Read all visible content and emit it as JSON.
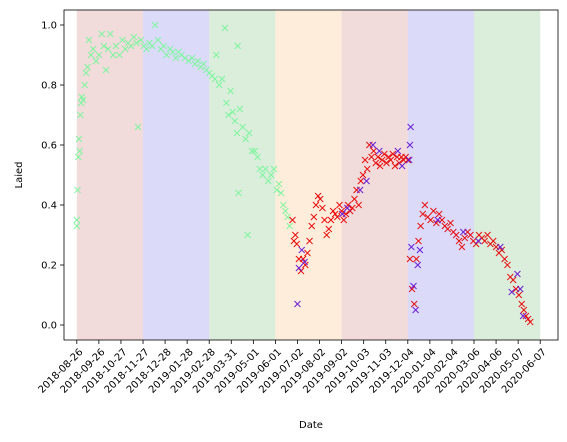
{
  "chart_data": {
    "type": "scatter",
    "title": "",
    "xlabel": "Date",
    "ylabel": "Laied",
    "xlim": [
      "2018-08-08",
      "2020-07-02"
    ],
    "ylim": [
      -0.05,
      1.05
    ],
    "grid": false,
    "legend": "none",
    "marker": "x",
    "x_ticks": [
      "2018-08-26",
      "2018-09-26",
      "2018-10-27",
      "2018-11-27",
      "2018-12-28",
      "2019-01-28",
      "2019-02-28",
      "2019-03-31",
      "2019-05-01",
      "2019-06-01",
      "2019-07-02",
      "2019-08-02",
      "2019-09-02",
      "2019-10-03",
      "2019-11-03",
      "2019-12-04",
      "2020-01-04",
      "2020-02-04",
      "2020-03-06",
      "2020-04-06",
      "2020-05-07",
      "2020-06-07"
    ],
    "y_ticks": [
      0.0,
      0.2,
      0.4,
      0.6,
      0.8,
      1.0
    ],
    "background_bands": [
      {
        "start": "2018-08-26",
        "end": "2018-11-27",
        "color": "#d9a0a0"
      },
      {
        "start": "2018-11-27",
        "end": "2019-02-28",
        "color": "#a0a0f0"
      },
      {
        "start": "2019-02-28",
        "end": "2019-06-01",
        "color": "#a0d0a0"
      },
      {
        "start": "2019-06-01",
        "end": "2019-09-02",
        "color": "#ffd0a0"
      },
      {
        "start": "2019-09-02",
        "end": "2019-12-04",
        "color": "#d9a0a0"
      },
      {
        "start": "2019-12-04",
        "end": "2020-03-06",
        "color": "#a0a0f0"
      },
      {
        "start": "2020-03-06",
        "end": "2020-06-07",
        "color": "#a0d0a0"
      }
    ],
    "series": [
      {
        "color": "#7ff59f",
        "points": [
          [
            "2018-08-26",
            0.33
          ],
          [
            "2018-08-26",
            0.35
          ],
          [
            "2018-08-27",
            0.45
          ],
          [
            "2018-08-28",
            0.56
          ],
          [
            "2018-08-29",
            0.62
          ],
          [
            "2018-08-30",
            0.58
          ],
          [
            "2018-08-31",
            0.7
          ],
          [
            "2018-09-01",
            0.74
          ],
          [
            "2018-09-02",
            0.76
          ],
          [
            "2018-09-04",
            0.75
          ],
          [
            "2018-09-06",
            0.8
          ],
          [
            "2018-09-08",
            0.84
          ],
          [
            "2018-09-10",
            0.86
          ],
          [
            "2018-09-12",
            0.95
          ],
          [
            "2018-09-15",
            0.9
          ],
          [
            "2018-09-18",
            0.92
          ],
          [
            "2018-09-22",
            0.88
          ],
          [
            "2018-09-26",
            0.9
          ],
          [
            "2018-09-30",
            0.97
          ],
          [
            "2018-10-03",
            0.93
          ],
          [
            "2018-10-06",
            0.85
          ],
          [
            "2018-10-09",
            0.92
          ],
          [
            "2018-10-12",
            0.97
          ],
          [
            "2018-10-16",
            0.9
          ],
          [
            "2018-10-20",
            0.93
          ],
          [
            "2018-10-25",
            0.9
          ],
          [
            "2018-10-29",
            0.95
          ],
          [
            "2018-11-02",
            0.92
          ],
          [
            "2018-11-06",
            0.94
          ],
          [
            "2018-11-10",
            0.93
          ],
          [
            "2018-11-14",
            0.96
          ],
          [
            "2018-11-18",
            0.94
          ],
          [
            "2018-11-20",
            0.66
          ],
          [
            "2018-11-24",
            0.95
          ],
          [
            "2018-11-28",
            0.93
          ],
          [
            "2018-12-02",
            0.92
          ],
          [
            "2018-12-06",
            0.94
          ],
          [
            "2018-12-10",
            0.93
          ],
          [
            "2018-12-14",
            1.0
          ],
          [
            "2018-12-18",
            0.95
          ],
          [
            "2018-12-22",
            0.92
          ],
          [
            "2018-12-26",
            0.93
          ],
          [
            "2018-12-30",
            0.9
          ],
          [
            "2019-01-04",
            0.92
          ],
          [
            "2019-01-08",
            0.91
          ],
          [
            "2019-01-12",
            0.89
          ],
          [
            "2019-01-16",
            0.91
          ],
          [
            "2019-01-20",
            0.9
          ],
          [
            "2019-01-25",
            0.89
          ],
          [
            "2019-01-30",
            0.88
          ],
          [
            "2019-02-04",
            0.89
          ],
          [
            "2019-02-08",
            0.87
          ],
          [
            "2019-02-12",
            0.88
          ],
          [
            "2019-02-16",
            0.86
          ],
          [
            "2019-02-20",
            0.87
          ],
          [
            "2019-02-24",
            0.85
          ],
          [
            "2019-02-28",
            0.84
          ],
          [
            "2019-03-04",
            0.83
          ],
          [
            "2019-03-08",
            0.82
          ],
          [
            "2019-03-10",
            0.9
          ],
          [
            "2019-03-14",
            0.8
          ],
          [
            "2019-03-18",
            0.82
          ],
          [
            "2019-03-22",
            0.99
          ],
          [
            "2019-03-24",
            0.74
          ],
          [
            "2019-03-27",
            0.7
          ],
          [
            "2019-03-30",
            0.78
          ],
          [
            "2019-04-02",
            0.71
          ],
          [
            "2019-04-05",
            0.68
          ],
          [
            "2019-04-08",
            0.64
          ],
          [
            "2019-04-09",
            0.93
          ],
          [
            "2019-04-10",
            0.44
          ],
          [
            "2019-04-12",
            0.72
          ],
          [
            "2019-04-16",
            0.66
          ],
          [
            "2019-04-20",
            0.62
          ],
          [
            "2019-04-23",
            0.3
          ],
          [
            "2019-04-25",
            0.64
          ],
          [
            "2019-04-29",
            0.58
          ],
          [
            "2019-05-03",
            0.58
          ],
          [
            "2019-05-07",
            0.56
          ],
          [
            "2019-05-10",
            0.52
          ],
          [
            "2019-05-14",
            0.5
          ],
          [
            "2019-05-18",
            0.52
          ],
          [
            "2019-05-22",
            0.48
          ],
          [
            "2019-05-26",
            0.5
          ],
          [
            "2019-05-30",
            0.52
          ],
          [
            "2019-06-03",
            0.45
          ],
          [
            "2019-06-06",
            0.47
          ],
          [
            "2019-06-09",
            0.44
          ],
          [
            "2019-06-12",
            0.4
          ],
          [
            "2019-06-15",
            0.38
          ],
          [
            "2019-06-18",
            0.36
          ],
          [
            "2019-06-21",
            0.33
          ]
        ]
      },
      {
        "color": "#e81010",
        "points": [
          [
            "2019-06-25",
            0.35
          ],
          [
            "2019-06-27",
            0.28
          ],
          [
            "2019-06-29",
            0.3
          ],
          [
            "2019-07-01",
            0.27
          ],
          [
            "2019-07-04",
            0.22
          ],
          [
            "2019-07-07",
            0.18
          ],
          [
            "2019-07-10",
            0.22
          ],
          [
            "2019-07-13",
            0.2
          ],
          [
            "2019-07-16",
            0.24
          ],
          [
            "2019-07-19",
            0.28
          ],
          [
            "2019-07-22",
            0.33
          ],
          [
            "2019-07-25",
            0.36
          ],
          [
            "2019-07-28",
            0.4
          ],
          [
            "2019-07-31",
            0.43
          ],
          [
            "2019-08-03",
            0.42
          ],
          [
            "2019-08-06",
            0.39
          ],
          [
            "2019-08-09",
            0.35
          ],
          [
            "2019-08-12",
            0.3
          ],
          [
            "2019-08-15",
            0.32
          ],
          [
            "2019-08-18",
            0.35
          ],
          [
            "2019-08-21",
            0.38
          ],
          [
            "2019-08-24",
            0.37
          ],
          [
            "2019-08-27",
            0.36
          ],
          [
            "2019-08-30",
            0.4
          ],
          [
            "2019-09-02",
            0.38
          ],
          [
            "2019-09-05",
            0.35
          ],
          [
            "2019-09-08",
            0.37
          ],
          [
            "2019-09-11",
            0.4
          ],
          [
            "2019-09-14",
            0.38
          ],
          [
            "2019-09-17",
            0.39
          ],
          [
            "2019-09-20",
            0.42
          ],
          [
            "2019-09-23",
            0.45
          ],
          [
            "2019-09-26",
            0.4
          ],
          [
            "2019-09-29",
            0.48
          ],
          [
            "2019-10-02",
            0.5
          ],
          [
            "2019-10-05",
            0.55
          ],
          [
            "2019-10-08",
            0.52
          ],
          [
            "2019-10-11",
            0.6
          ],
          [
            "2019-10-14",
            0.56
          ],
          [
            "2019-10-17",
            0.58
          ],
          [
            "2019-10-20",
            0.54
          ],
          [
            "2019-10-23",
            0.56
          ],
          [
            "2019-10-26",
            0.53
          ],
          [
            "2019-10-29",
            0.55
          ],
          [
            "2019-11-01",
            0.57
          ],
          [
            "2019-11-04",
            0.54
          ],
          [
            "2019-11-07",
            0.56
          ],
          [
            "2019-11-10",
            0.55
          ],
          [
            "2019-11-13",
            0.57
          ],
          [
            "2019-11-16",
            0.53
          ],
          [
            "2019-11-19",
            0.56
          ],
          [
            "2019-11-22",
            0.54
          ],
          [
            "2019-11-25",
            0.56
          ],
          [
            "2019-11-28",
            0.55
          ],
          [
            "2019-12-01",
            0.56
          ],
          [
            "2019-12-04",
            0.55
          ],
          [
            "2019-12-07",
            0.22
          ],
          [
            "2019-12-10",
            0.12
          ],
          [
            "2019-12-13",
            0.07
          ],
          [
            "2019-12-16",
            0.22
          ],
          [
            "2019-12-19",
            0.28
          ],
          [
            "2019-12-22",
            0.33
          ],
          [
            "2019-12-25",
            0.37
          ],
          [
            "2019-12-28",
            0.4
          ],
          [
            "2020-01-01",
            0.36
          ],
          [
            "2020-01-05",
            0.35
          ],
          [
            "2020-01-09",
            0.38
          ],
          [
            "2020-01-13",
            0.34
          ],
          [
            "2020-01-17",
            0.37
          ],
          [
            "2020-01-21",
            0.35
          ],
          [
            "2020-01-25",
            0.33
          ],
          [
            "2020-01-29",
            0.32
          ],
          [
            "2020-02-02",
            0.34
          ],
          [
            "2020-02-06",
            0.31
          ],
          [
            "2020-02-10",
            0.3
          ],
          [
            "2020-02-14",
            0.28
          ],
          [
            "2020-02-18",
            0.26
          ],
          [
            "2020-02-22",
            0.29
          ],
          [
            "2020-02-26",
            0.31
          ],
          [
            "2020-03-01",
            0.3
          ],
          [
            "2020-03-05",
            0.28
          ],
          [
            "2020-03-09",
            0.27
          ],
          [
            "2020-03-13",
            0.3
          ],
          [
            "2020-03-17",
            0.29
          ],
          [
            "2020-03-21",
            0.28
          ],
          [
            "2020-03-25",
            0.3
          ],
          [
            "2020-03-29",
            0.27
          ],
          [
            "2020-04-02",
            0.28
          ],
          [
            "2020-04-06",
            0.26
          ],
          [
            "2020-04-10",
            0.24
          ],
          [
            "2020-04-14",
            0.25
          ],
          [
            "2020-04-18",
            0.22
          ],
          [
            "2020-04-22",
            0.2
          ],
          [
            "2020-04-26",
            0.16
          ],
          [
            "2020-04-30",
            0.15
          ],
          [
            "2020-05-04",
            0.12
          ],
          [
            "2020-05-08",
            0.1
          ],
          [
            "2020-05-12",
            0.07
          ],
          [
            "2020-05-15",
            0.05
          ],
          [
            "2020-05-18",
            0.03
          ],
          [
            "2020-05-21",
            0.02
          ],
          [
            "2020-05-24",
            0.01
          ]
        ]
      },
      {
        "color": "#6a1fd6",
        "points": [
          [
            "2019-07-02",
            0.07
          ],
          [
            "2019-07-04",
            0.19
          ],
          [
            "2019-07-08",
            0.25
          ],
          [
            "2019-07-12",
            0.21
          ],
          [
            "2019-09-03",
            0.37
          ],
          [
            "2019-09-10",
            0.39
          ],
          [
            "2019-09-28",
            0.45
          ],
          [
            "2019-10-07",
            0.48
          ],
          [
            "2019-10-16",
            0.6
          ],
          [
            "2019-10-25",
            0.58
          ],
          [
            "2019-11-20",
            0.58
          ],
          [
            "2019-11-26",
            0.53
          ],
          [
            "2019-12-06",
            0.55
          ],
          [
            "2019-12-07",
            0.6
          ],
          [
            "2019-12-08",
            0.66
          ],
          [
            "2019-12-09",
            0.26
          ],
          [
            "2019-12-12",
            0.13
          ],
          [
            "2019-12-15",
            0.05
          ],
          [
            "2019-12-18",
            0.2
          ],
          [
            "2019-12-21",
            0.25
          ],
          [
            "2020-01-15",
            0.35
          ],
          [
            "2020-02-20",
            0.31
          ],
          [
            "2020-03-12",
            0.28
          ],
          [
            "2020-04-12",
            0.26
          ],
          [
            "2020-04-28",
            0.11
          ],
          [
            "2020-05-06",
            0.17
          ],
          [
            "2020-05-10",
            0.12
          ],
          [
            "2020-05-14",
            0.03
          ]
        ]
      }
    ]
  }
}
